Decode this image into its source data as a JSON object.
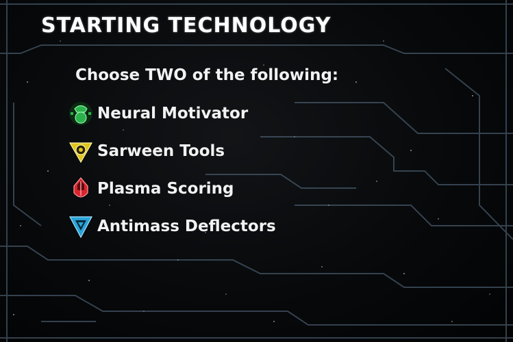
{
  "card": {
    "title": "STARTING TECHNOLOGY",
    "instruction": "Choose TWO of the following:"
  },
  "technologies": [
    {
      "label": "Neural Motivator",
      "icon": "green-biotic-icon",
      "color": "#2bb24c"
    },
    {
      "label": "Sarween Tools",
      "icon": "yellow-cybernetic-icon",
      "color": "#e0c51c"
    },
    {
      "label": "Plasma Scoring",
      "icon": "red-warfare-icon",
      "color": "#d8262e"
    },
    {
      "label": "Antimass Deflectors",
      "icon": "blue-propulsion-icon",
      "color": "#2aa3d8"
    }
  ],
  "colors": {
    "background": "#07090b",
    "circuit_line": "#5c7388",
    "text": "#f2f2f2"
  }
}
